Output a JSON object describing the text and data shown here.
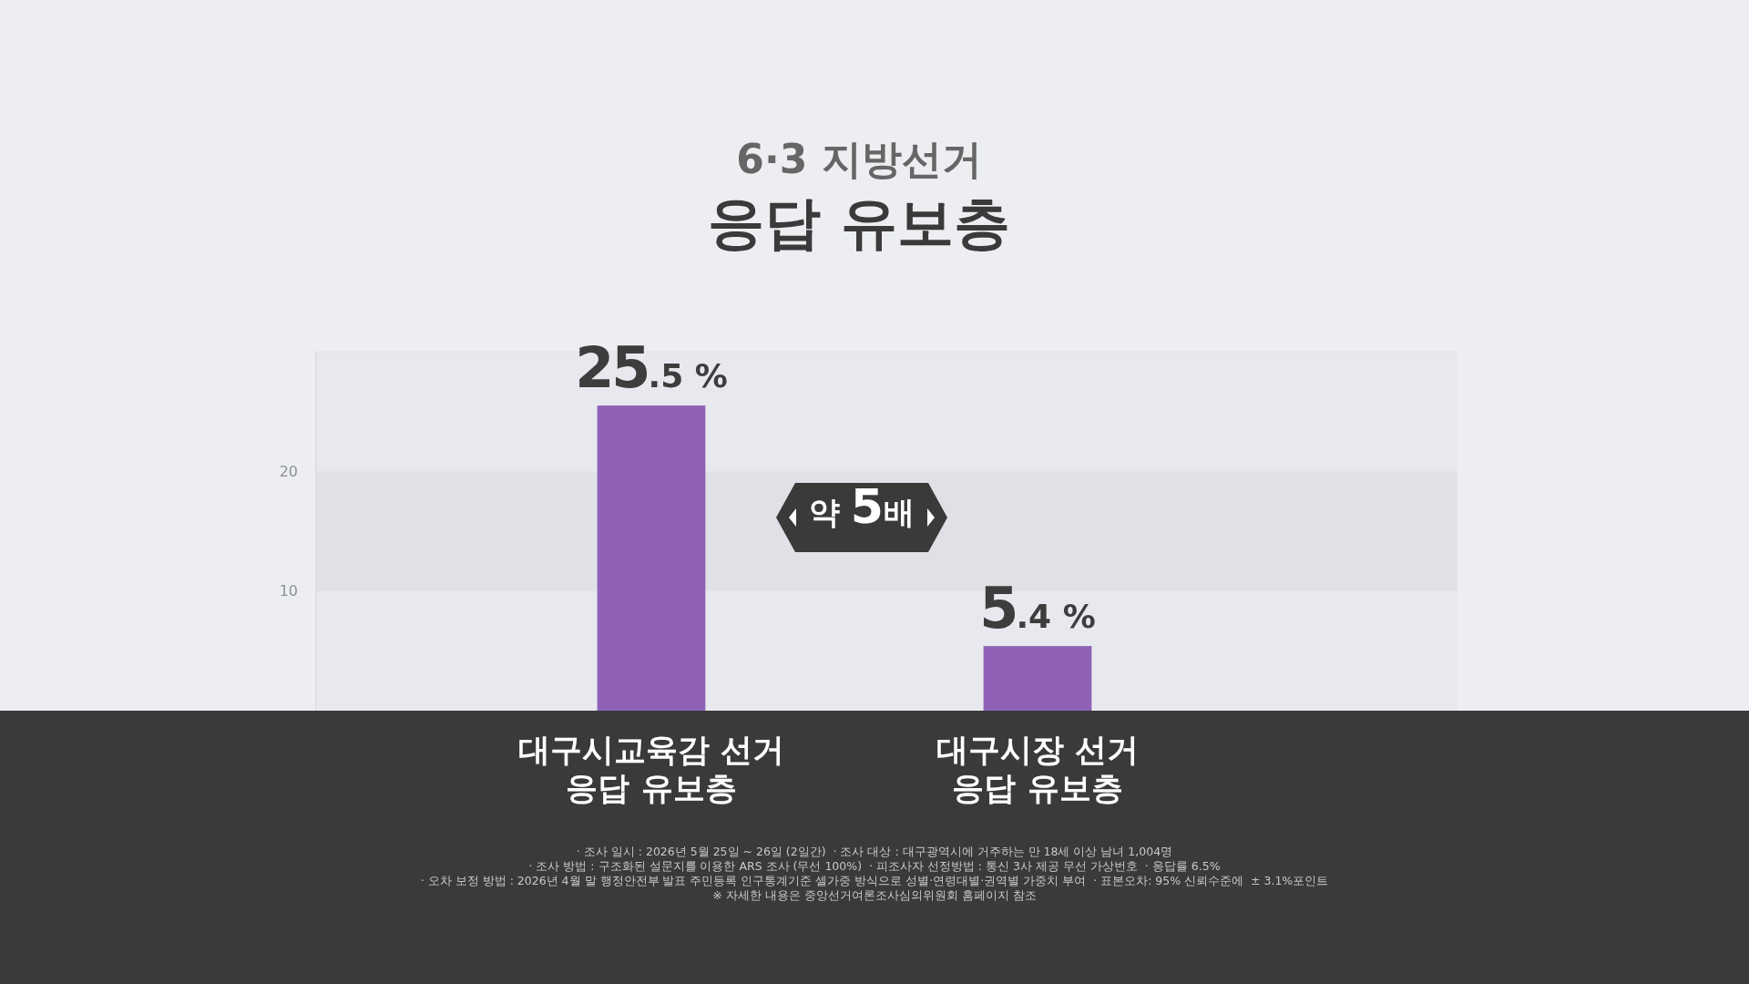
{
  "chart_data": {
    "type": "bar",
    "subtitle": "6·3 지방선거",
    "title": "응답 유보층",
    "categories": [
      "대구시교육감 선거\n응답 유보층",
      "대구시장 선거\n응답 유보층"
    ],
    "values": [
      25.5,
      5.4
    ],
    "value_labels": [
      "25.5 %",
      "5.4 %"
    ],
    "color": "#8f62b8",
    "ylim": [
      0,
      30
    ],
    "yticks": [
      10,
      20
    ],
    "bands": [
      {
        "axis": "y",
        "from": 10,
        "to": 20,
        "color": "#e0e1e6"
      }
    ],
    "annotations": [
      "약 5배",
      "· 조사 일시 : 2026년 5월 25일 ~ 26일 (2일간)  · 조사 대상 : 대구광역시에 거주하는 만 18세 이상 남녀 1,004명",
      "· 조사 방법 : 구조화된 설문지를 이용한 ARS 조사 (무선 100%)  · 피조사자 선정방법 : 통신 3사 제공 무선 가상번호  · 응답률 6.5%",
      "· 오차 보정 방법 : 2026년 4월 말 행정안전부 발표 주민등록 인구통계기준 셀가중 방식으로 성별·연령대별·권역별 가중치 부여  · 표본오차: 95% 신뢰수준에  ± 3.1%포인트",
      "※ 자세한 내용은 중앙선거여론조사심의위원회 홈페이지 참조"
    ]
  }
}
